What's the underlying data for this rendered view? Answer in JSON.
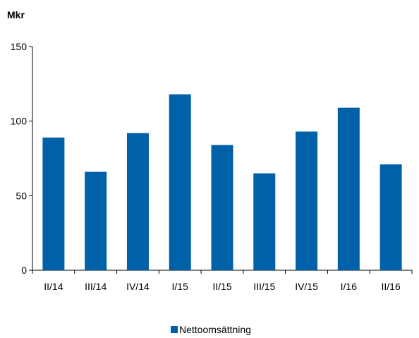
{
  "chart_data": {
    "type": "bar",
    "unit_label": "Mkr",
    "categories": [
      "II/14",
      "III/14",
      "IV/14",
      "I/15",
      "II/15",
      "III/15",
      "IV/15",
      "I/16",
      "II/16"
    ],
    "series": [
      {
        "name": "Nettoomsättning",
        "values": [
          89,
          66,
          92,
          118,
          84,
          65,
          93,
          109,
          71
        ],
        "color": "#0060A8"
      }
    ],
    "ylim": [
      0,
      150
    ],
    "yticks": [
      0,
      50,
      100,
      150
    ],
    "grid": false,
    "legend_position": "bottom-center"
  }
}
